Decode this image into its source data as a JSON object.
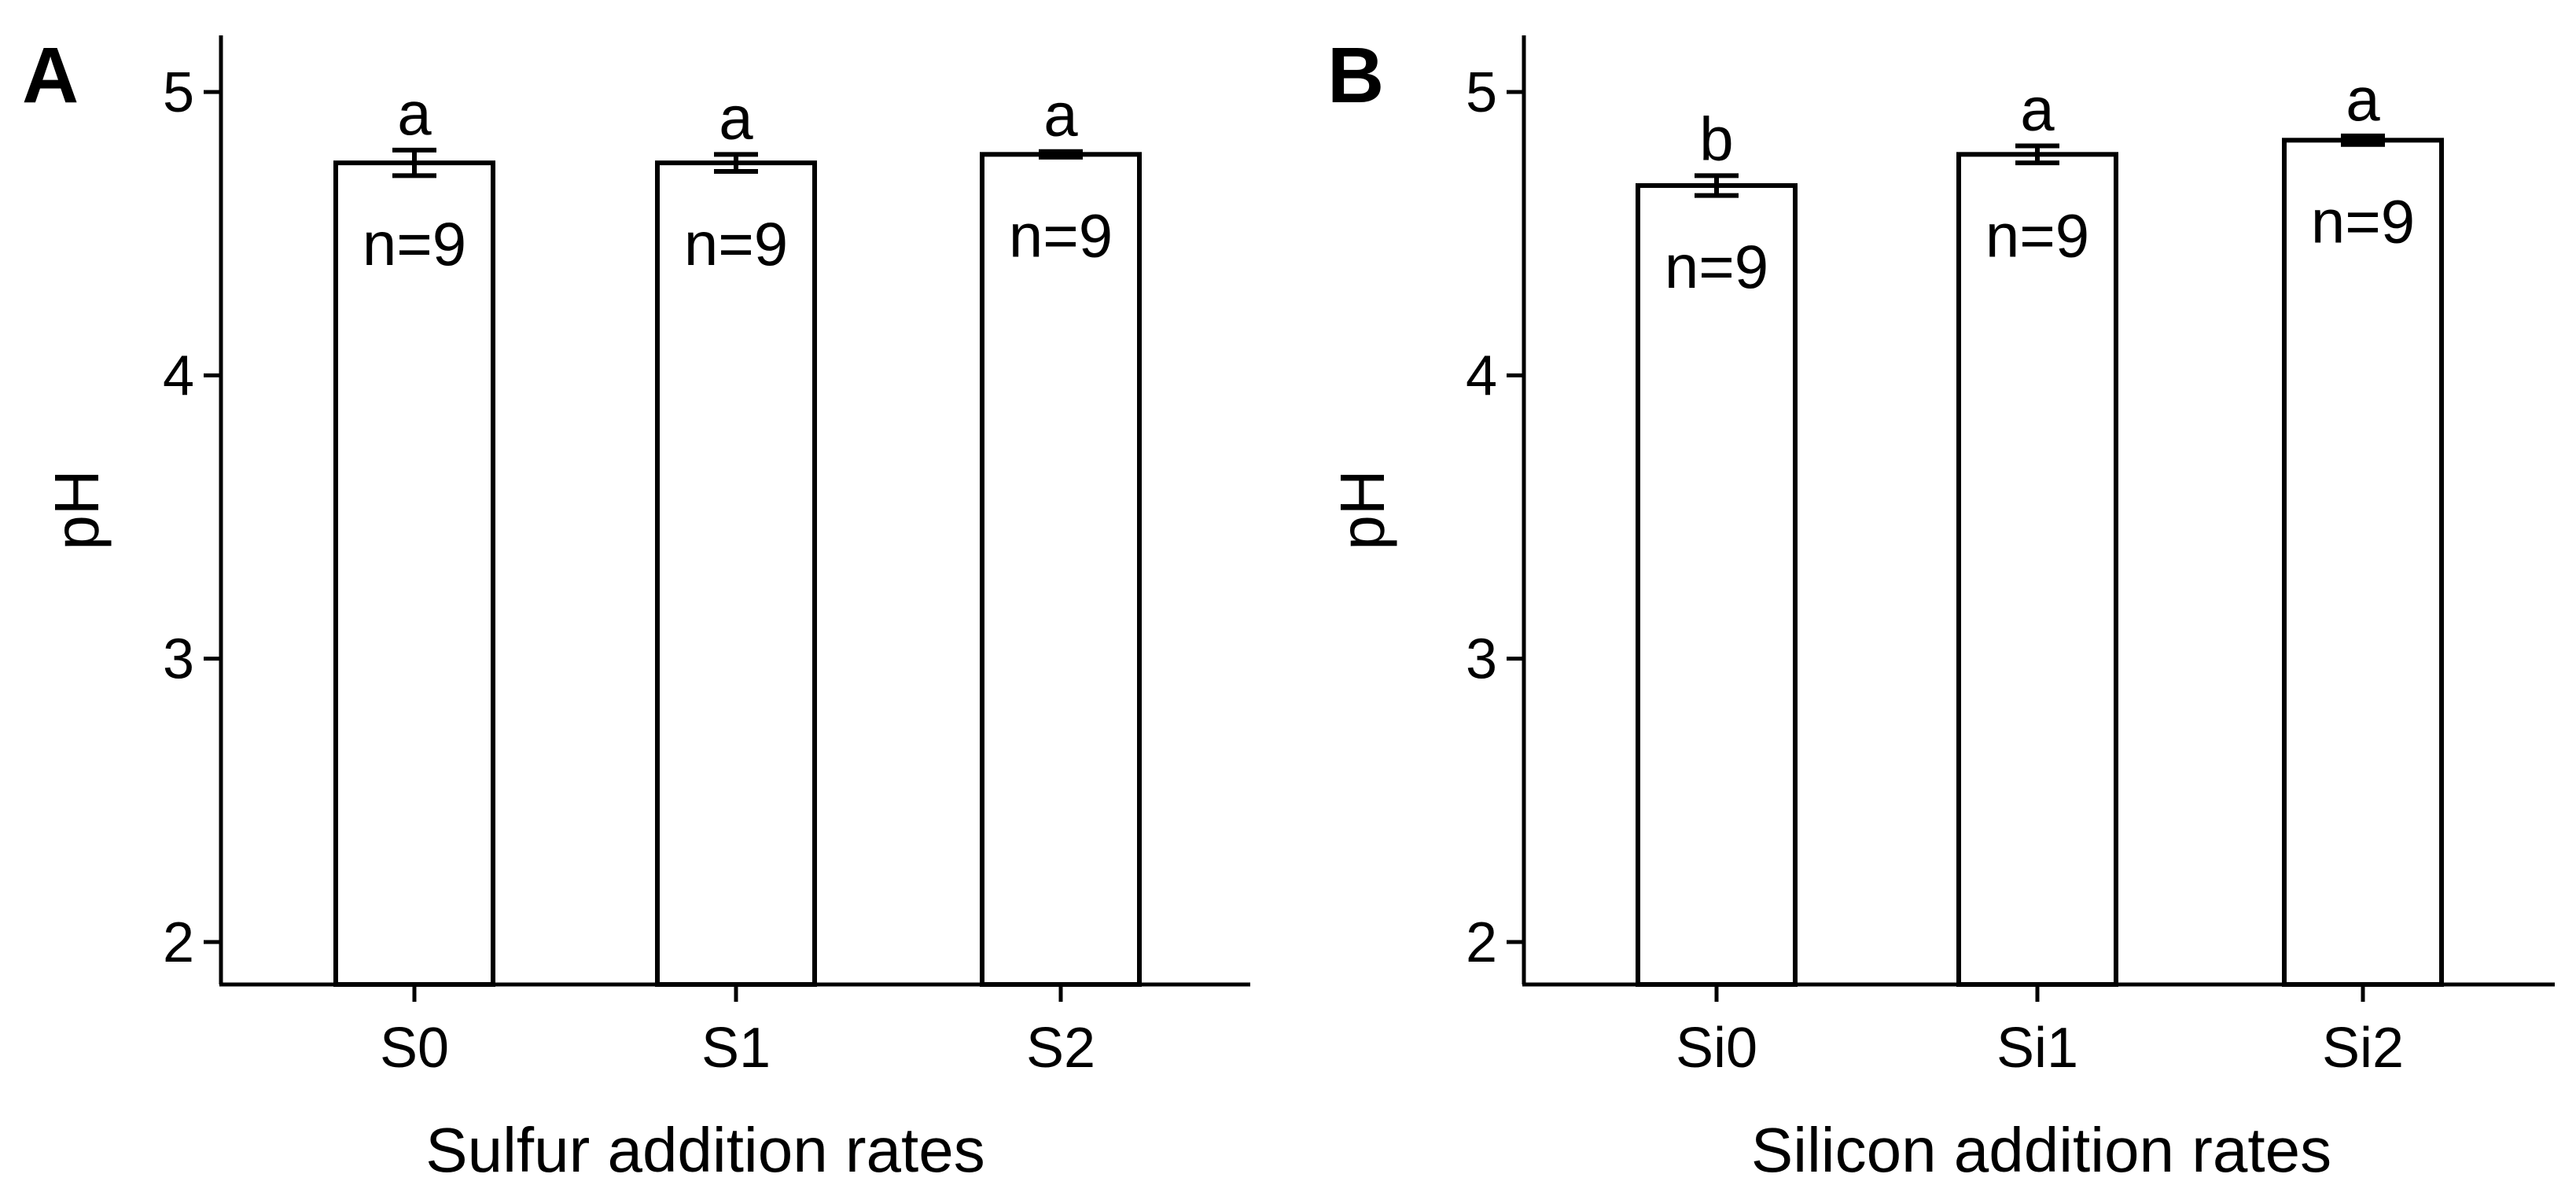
{
  "chart_data": [
    {
      "type": "bar",
      "panel": "A",
      "categories": [
        "S0",
        "S1",
        "S2"
      ],
      "values": [
        4.75,
        4.75,
        4.78
      ],
      "errors": [
        0.045,
        0.03,
        0.01
      ],
      "significance": [
        "a",
        "a",
        "a"
      ],
      "n_labels": [
        "n=9",
        "n=9",
        "n=9"
      ],
      "xlabel": "Sulfur addition rates",
      "ylabel": "pH",
      "ylim": [
        1.85,
        5.2
      ],
      "yticks": [
        2,
        3,
        4,
        5
      ],
      "ytick_labels": [
        "2",
        "3",
        "4",
        "5"
      ],
      "grid": false,
      "colors": {
        "bar_fill": "#ffffff",
        "bar_stroke": "#000000"
      }
    },
    {
      "type": "bar",
      "panel": "B",
      "categories": [
        "Si0",
        "Si1",
        "Si2"
      ],
      "values": [
        4.67,
        4.78,
        4.83
      ],
      "errors": [
        0.035,
        0.03,
        0.015
      ],
      "significance": [
        "b",
        "a",
        "a"
      ],
      "n_labels": [
        "n=9",
        "n=9",
        "n=9"
      ],
      "xlabel": "Silicon addition rates",
      "ylabel": "pH",
      "ylim": [
        1.85,
        5.2
      ],
      "yticks": [
        2,
        3,
        4,
        5
      ],
      "ytick_labels": [
        "2",
        "3",
        "4",
        "5"
      ],
      "grid": false,
      "colors": {
        "bar_fill": "#ffffff",
        "bar_stroke": "#000000"
      }
    }
  ]
}
